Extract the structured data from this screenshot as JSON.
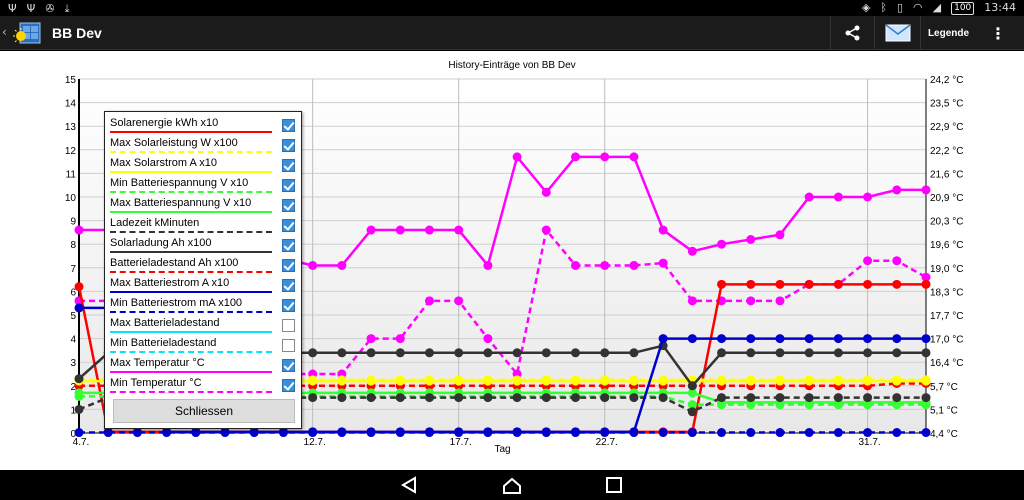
{
  "status_bar": {
    "time": "13:44",
    "battery": "100"
  },
  "action_bar": {
    "title": "BB Dev",
    "legend_label": "Legende"
  },
  "chart_title": "History-Einträge von BB Dev",
  "legend": {
    "close_label": "Schliessen",
    "items": [
      {
        "label": "Solarenergie kWh x10",
        "color": "#ff0000",
        "dashed": false,
        "checked": true
      },
      {
        "label": "Max Solarleistung W x100",
        "color": "#ffff00",
        "dashed": true,
        "checked": true
      },
      {
        "label": "Max Solarstrom A x10",
        "color": "#ffff00",
        "dashed": false,
        "checked": true
      },
      {
        "label": "Min Batteriespannung V x10",
        "color": "#33ff33",
        "dashed": true,
        "checked": true
      },
      {
        "label": "Max Batteriespannung V x10",
        "color": "#33ff33",
        "dashed": false,
        "checked": true
      },
      {
        "label": "Ladezeit kMinuten",
        "color": "#333333",
        "dashed": true,
        "checked": true
      },
      {
        "label": "Solarladung Ah x100",
        "color": "#333333",
        "dashed": false,
        "checked": true
      },
      {
        "label": "Batterieladestand Ah x100",
        "color": "#ff0000",
        "dashed": true,
        "checked": true
      },
      {
        "label": "Max Batteriestrom A x10",
        "color": "#0000cc",
        "dashed": false,
        "checked": true
      },
      {
        "label": "Min Batteriestrom mA x100",
        "color": "#0000cc",
        "dashed": true,
        "checked": true
      },
      {
        "label": "Max Batterieladestand",
        "color": "#00e5ff",
        "dashed": false,
        "checked": false
      },
      {
        "label": "Min Batterieladestand",
        "color": "#00e5ff",
        "dashed": true,
        "checked": false
      },
      {
        "label": "Max Temperatur °C",
        "color": "#ff00ff",
        "dashed": false,
        "checked": true
      },
      {
        "label": "Min Temperatur °C",
        "color": "#ff00ff",
        "dashed": true,
        "checked": true
      }
    ]
  },
  "chart_data": {
    "type": "line",
    "title": "History-Einträge von BB Dev",
    "xlabel": "Tag",
    "ylabel": "",
    "x_range": [
      4,
      33
    ],
    "x_ticks": [
      {
        "x": 4,
        "label": "4.7."
      },
      {
        "x": 12,
        "label": "12.7."
      },
      {
        "x": 17,
        "label": "17.7."
      },
      {
        "x": 22,
        "label": "22.7."
      },
      {
        "x": 31,
        "label": "31.7."
      }
    ],
    "ylim": [
      0,
      15
    ],
    "y_ticks": [
      0,
      1,
      2,
      3,
      4,
      5,
      6,
      7,
      8,
      9,
      10,
      11,
      12,
      13,
      14,
      15
    ],
    "y2_ticks": [
      "4,4 °C",
      "5,1 °C",
      "5,7 °C",
      "16,4 °C",
      "17,0 °C",
      "17,7 °C",
      "18,3 °C",
      "19,0 °C",
      "19,6 °C",
      "20,3 °C",
      "20,9 °C",
      "21,6 °C",
      "22,2 °C",
      "22,9 °C",
      "23,5 °C",
      "24,2 °C"
    ],
    "grid": true,
    "legend_position": "top-left",
    "series": [
      {
        "name": "Max Temperatur °C",
        "color": "#ff00ff",
        "dashed": false,
        "x": [
          4,
          5,
          6,
          7,
          8,
          9,
          10,
          11,
          12,
          13,
          14,
          15,
          16,
          17,
          18,
          19,
          20,
          21,
          22,
          23,
          24,
          25,
          26,
          27,
          28,
          29,
          30,
          31,
          32,
          33
        ],
        "y": [
          8.6,
          8.6,
          8.6,
          8.6,
          8.6,
          8.6,
          7.4,
          7.4,
          7.1,
          7.1,
          8.6,
          8.6,
          8.6,
          8.6,
          7.1,
          11.7,
          10.2,
          11.7,
          11.7,
          11.7,
          8.6,
          7.7,
          8.0,
          8.2,
          8.4,
          10.0,
          10.0,
          10.0,
          10.3,
          10.3
        ],
        "x_visible": [
          4,
          12,
          13,
          14,
          15,
          16,
          17,
          18,
          19,
          20,
          21,
          22,
          23,
          24,
          25,
          26,
          27,
          28,
          29,
          30,
          31,
          32,
          33
        ]
      },
      {
        "name": "Min Temperatur °C",
        "color": "#ff00ff",
        "dashed": true,
        "x": [
          4,
          5,
          6,
          7,
          8,
          9,
          10,
          11,
          12,
          13,
          14,
          15,
          16,
          17,
          18,
          19,
          20,
          21,
          22,
          23,
          24,
          25,
          26,
          27,
          28,
          29,
          30,
          31,
          32,
          33
        ],
        "y": [
          5.6,
          5.6,
          5.6,
          5.6,
          5.6,
          5.6,
          2.5,
          2.5,
          2.5,
          2.5,
          4.0,
          4.0,
          5.6,
          5.6,
          4.0,
          2.5,
          8.6,
          7.1,
          7.1,
          7.1,
          7.2,
          5.6,
          5.6,
          5.6,
          5.6,
          6.3,
          6.3,
          7.3,
          7.3,
          6.6
        ]
      },
      {
        "name": "Solarenergie kWh x10",
        "color": "#ff0000",
        "dashed": false,
        "x": [
          4,
          5,
          6,
          7,
          8,
          9,
          10,
          11,
          12,
          13,
          14,
          15,
          16,
          17,
          18,
          19,
          20,
          21,
          22,
          23,
          24,
          25,
          26,
          27,
          28,
          29,
          30,
          31,
          32,
          33
        ],
        "y": [
          6.2,
          0.05,
          0.05,
          0.05,
          0.05,
          0.05,
          0.05,
          0.05,
          0.05,
          0.05,
          0.05,
          0.05,
          0.05,
          0.05,
          0.05,
          0.05,
          0.05,
          0.05,
          0.05,
          0.05,
          0.05,
          0.05,
          6.3,
          6.3,
          6.3,
          6.3,
          6.3,
          6.3,
          6.3,
          6.3
        ]
      },
      {
        "name": "Batterieladestand Ah x100",
        "color": "#ff0000",
        "dashed": true,
        "x": [
          4,
          5,
          6,
          7,
          8,
          9,
          10,
          11,
          12,
          13,
          14,
          15,
          16,
          17,
          18,
          19,
          20,
          21,
          22,
          23,
          24,
          25,
          26,
          27,
          28,
          29,
          30,
          31,
          32,
          33
        ],
        "y": [
          2.0,
          2.0,
          2.0,
          2.0,
          2.0,
          2.0,
          2.0,
          2.0,
          2.0,
          2.0,
          2.0,
          2.0,
          2.0,
          2.0,
          2.0,
          2.0,
          2.0,
          2.0,
          2.0,
          2.0,
          2.0,
          2.0,
          2.0,
          2.0,
          2.0,
          2.0,
          2.0,
          2.0,
          2.1,
          2.1
        ]
      },
      {
        "name": "Max Solarstrom A x10",
        "color": "#ffff00",
        "dashed": false,
        "x": [
          4,
          33
        ],
        "y": [
          2.2,
          2.2
        ]
      },
      {
        "name": "Max Solarleistung W x100",
        "color": "#ffff00",
        "dashed": true,
        "x": [
          4,
          33
        ],
        "y": [
          2.25,
          2.25
        ]
      },
      {
        "name": "Max Batteriespannung V x10",
        "color": "#33ff33",
        "dashed": false,
        "x": [
          4,
          5,
          6,
          7,
          8,
          9,
          10,
          11,
          12,
          13,
          14,
          15,
          16,
          17,
          18,
          19,
          20,
          21,
          22,
          23,
          24,
          25,
          26,
          27,
          28,
          29,
          30,
          31,
          32,
          33
        ],
        "y": [
          1.7,
          1.7,
          1.7,
          1.7,
          1.7,
          1.7,
          1.7,
          1.7,
          1.7,
          1.7,
          1.7,
          1.7,
          1.7,
          1.7,
          1.7,
          1.7,
          1.7,
          1.7,
          1.7,
          1.7,
          1.7,
          1.7,
          1.3,
          1.3,
          1.3,
          1.3,
          1.3,
          1.3,
          1.3,
          1.3
        ]
      },
      {
        "name": "Min Batteriespannung V x10",
        "color": "#33ff33",
        "dashed": true,
        "x": [
          4,
          5,
          6,
          7,
          8,
          9,
          10,
          11,
          12,
          13,
          14,
          15,
          16,
          17,
          18,
          19,
          20,
          21,
          22,
          23,
          24,
          25,
          26,
          27,
          28,
          29,
          30,
          31,
          32,
          33
        ],
        "y": [
          1.55,
          1.55,
          1.55,
          1.55,
          1.55,
          1.55,
          1.55,
          1.55,
          1.55,
          1.55,
          1.55,
          1.55,
          1.55,
          1.55,
          1.55,
          1.55,
          1.55,
          1.55,
          1.55,
          1.55,
          1.55,
          1.2,
          1.2,
          1.2,
          1.2,
          1.2,
          1.2,
          1.2,
          1.2,
          1.2
        ]
      },
      {
        "name": "Solarladung Ah x100",
        "color": "#333333",
        "dashed": false,
        "x": [
          4,
          5,
          6,
          7,
          8,
          9,
          10,
          11,
          12,
          13,
          14,
          15,
          16,
          17,
          18,
          19,
          20,
          21,
          22,
          23,
          24,
          25,
          26,
          27,
          28,
          29,
          30,
          31,
          32,
          33
        ],
        "y": [
          2.3,
          3.4,
          3.4,
          2.0,
          3.4,
          3.4,
          3.4,
          3.4,
          3.4,
          3.4,
          3.4,
          3.4,
          3.4,
          3.4,
          3.4,
          3.4,
          3.4,
          3.4,
          3.4,
          3.4,
          3.7,
          2.0,
          3.4,
          3.4,
          3.4,
          3.4,
          3.4,
          3.4,
          3.4,
          3.4
        ]
      },
      {
        "name": "Ladezeit kMinuten",
        "color": "#333333",
        "dashed": true,
        "x": [
          4,
          5,
          6,
          7,
          8,
          9,
          10,
          11,
          12,
          13,
          14,
          15,
          16,
          17,
          18,
          19,
          20,
          21,
          22,
          23,
          24,
          25,
          26,
          27,
          28,
          29,
          30,
          31,
          32,
          33
        ],
        "y": [
          1.0,
          1.5,
          1.5,
          0.9,
          1.5,
          1.5,
          1.5,
          1.5,
          1.5,
          1.5,
          1.5,
          1.5,
          1.5,
          1.5,
          1.5,
          1.5,
          1.5,
          1.5,
          1.5,
          1.5,
          1.5,
          0.9,
          1.5,
          1.5,
          1.5,
          1.5,
          1.5,
          1.5,
          1.5,
          1.5
        ]
      },
      {
        "name": "Max Batteriestrom A x10",
        "color": "#0000cc",
        "dashed": false,
        "x": [
          4,
          5,
          6,
          7,
          8,
          9,
          10,
          11,
          12,
          13,
          14,
          15,
          16,
          17,
          18,
          19,
          20,
          21,
          22,
          23,
          24,
          25,
          26,
          27,
          28,
          29,
          30,
          31,
          32,
          33
        ],
        "y": [
          5.3,
          5.3,
          5.3,
          0.05,
          0.05,
          0.05,
          0.05,
          0.05,
          0.05,
          0.05,
          0.05,
          0.05,
          0.05,
          0.05,
          0.05,
          0.05,
          0.05,
          0.05,
          0.05,
          0.05,
          4.0,
          4.0,
          4.0,
          4.0,
          4.0,
          4.0,
          4.0,
          4.0,
          4.0,
          4.0
        ]
      },
      {
        "name": "Min Batteriestrom mA x100",
        "color": "#0000cc",
        "dashed": true,
        "x": [
          4,
          33
        ],
        "y": [
          0.02,
          0.02
        ]
      }
    ]
  }
}
